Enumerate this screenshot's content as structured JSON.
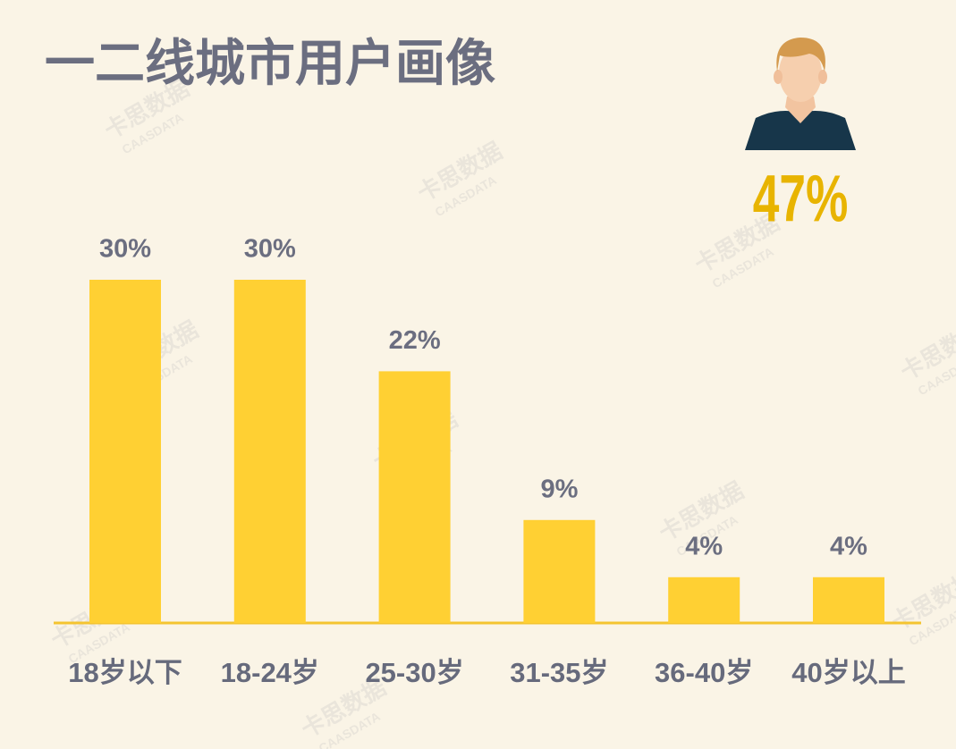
{
  "chart_data": {
    "type": "bar",
    "title": "一二线城市用户画像",
    "categories": [
      "18岁以下",
      "18-24岁",
      "25-30岁",
      "31-35岁",
      "36-40岁",
      "40岁以上"
    ],
    "values": [
      30,
      30,
      22,
      9,
      4,
      4
    ],
    "value_labels": [
      "30%",
      "30%",
      "22%",
      "9%",
      "4%",
      "4%"
    ],
    "color": "#ffd033",
    "annotation": "47%",
    "watermark": "卡思数据",
    "watermark_sub": "CAASDATA"
  }
}
